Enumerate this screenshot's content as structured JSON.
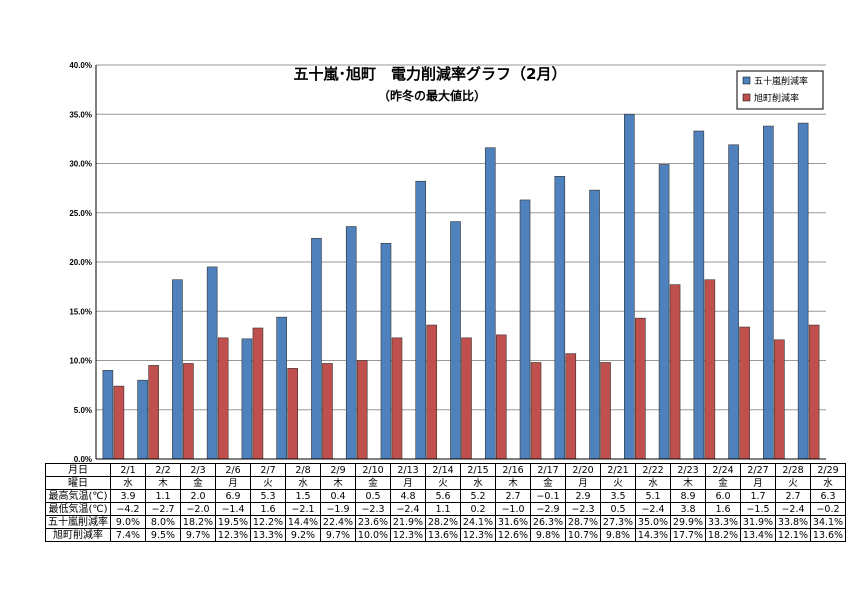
{
  "chart_data": {
    "type": "bar",
    "title": "五十嵐･旭町　電力削減率グラフ（2月）",
    "subtitle": "（昨冬の最大値比）",
    "ylim": [
      0,
      40
    ],
    "yticks": [
      "0.0%",
      "5.0%",
      "10.0%",
      "15.0%",
      "20.0%",
      "25.0%",
      "30.0%",
      "35.0%",
      "40.0%"
    ],
    "grid": true,
    "legend_position": "top-right",
    "categories": [
      "2/1",
      "2/2",
      "2/3",
      "2/6",
      "2/7",
      "2/8",
      "2/9",
      "2/10",
      "2/13",
      "2/14",
      "2/15",
      "2/16",
      "2/17",
      "2/20",
      "2/21",
      "2/22",
      "2/23",
      "2/24",
      "2/27",
      "2/28",
      "2/29"
    ],
    "series": [
      {
        "name": "五十嵐削減率",
        "color": "#4f81bd",
        "values": [
          9.0,
          8.0,
          18.2,
          19.5,
          12.2,
          14.4,
          22.4,
          23.6,
          21.9,
          28.2,
          24.1,
          31.6,
          26.3,
          28.7,
          27.3,
          35.0,
          29.9,
          33.3,
          31.9,
          33.8,
          34.1
        ]
      },
      {
        "name": "旭町削減率",
        "color": "#c0504d",
        "values": [
          7.4,
          9.5,
          9.7,
          12.3,
          13.3,
          9.2,
          9.7,
          10.0,
          12.3,
          13.6,
          12.3,
          12.6,
          9.8,
          10.7,
          9.8,
          14.3,
          17.7,
          18.2,
          13.4,
          12.1,
          13.6
        ]
      }
    ]
  },
  "table": {
    "rows": [
      {
        "label": "月日",
        "cells": [
          "2/1",
          "2/2",
          "2/3",
          "2/6",
          "2/7",
          "2/8",
          "2/9",
          "2/10",
          "2/13",
          "2/14",
          "2/15",
          "2/16",
          "2/17",
          "2/20",
          "2/21",
          "2/22",
          "2/23",
          "2/24",
          "2/27",
          "2/28",
          "2/29"
        ]
      },
      {
        "label": "曜日",
        "cells": [
          "水",
          "木",
          "金",
          "月",
          "火",
          "水",
          "木",
          "金",
          "月",
          "火",
          "水",
          "木",
          "金",
          "月",
          "火",
          "水",
          "木",
          "金",
          "月",
          "火",
          "水"
        ]
      },
      {
        "label": "最高気温(℃)",
        "cells": [
          "3.9",
          "1.1",
          "2.0",
          "6.9",
          "5.3",
          "1.5",
          "0.4",
          "0.5",
          "4.8",
          "5.6",
          "5.2",
          "2.7",
          "−0.1",
          "2.9",
          "3.5",
          "5.1",
          "8.9",
          "6.0",
          "1.7",
          "2.7",
          "6.3"
        ]
      },
      {
        "label": "最低気温(℃)",
        "cells": [
          "−4.2",
          "−2.7",
          "−2.0",
          "−1.4",
          "1.6",
          "−2.1",
          "−1.9",
          "−2.3",
          "−2.4",
          "1.1",
          "0.2",
          "−1.0",
          "−2.9",
          "−2.3",
          "0.5",
          "−2.4",
          "3.8",
          "1.6",
          "−1.5",
          "−2.4",
          "−0.2"
        ]
      },
      {
        "label": "五十嵐削減率",
        "cells": [
          "9.0%",
          "8.0%",
          "18.2%",
          "19.5%",
          "12.2%",
          "14.4%",
          "22.4%",
          "23.6%",
          "21.9%",
          "28.2%",
          "24.1%",
          "31.6%",
          "26.3%",
          "28.7%",
          "27.3%",
          "35.0%",
          "29.9%",
          "33.3%",
          "31.9%",
          "33.8%",
          "34.1%"
        ]
      },
      {
        "label": "旭町削減率",
        "cells": [
          "7.4%",
          "9.5%",
          "9.7%",
          "12.3%",
          "13.3%",
          "9.2%",
          "9.7%",
          "10.0%",
          "12.3%",
          "13.6%",
          "12.3%",
          "12.6%",
          "9.8%",
          "10.7%",
          "9.8%",
          "14.3%",
          "17.7%",
          "18.2%",
          "13.4%",
          "12.1%",
          "13.6%"
        ]
      }
    ]
  }
}
